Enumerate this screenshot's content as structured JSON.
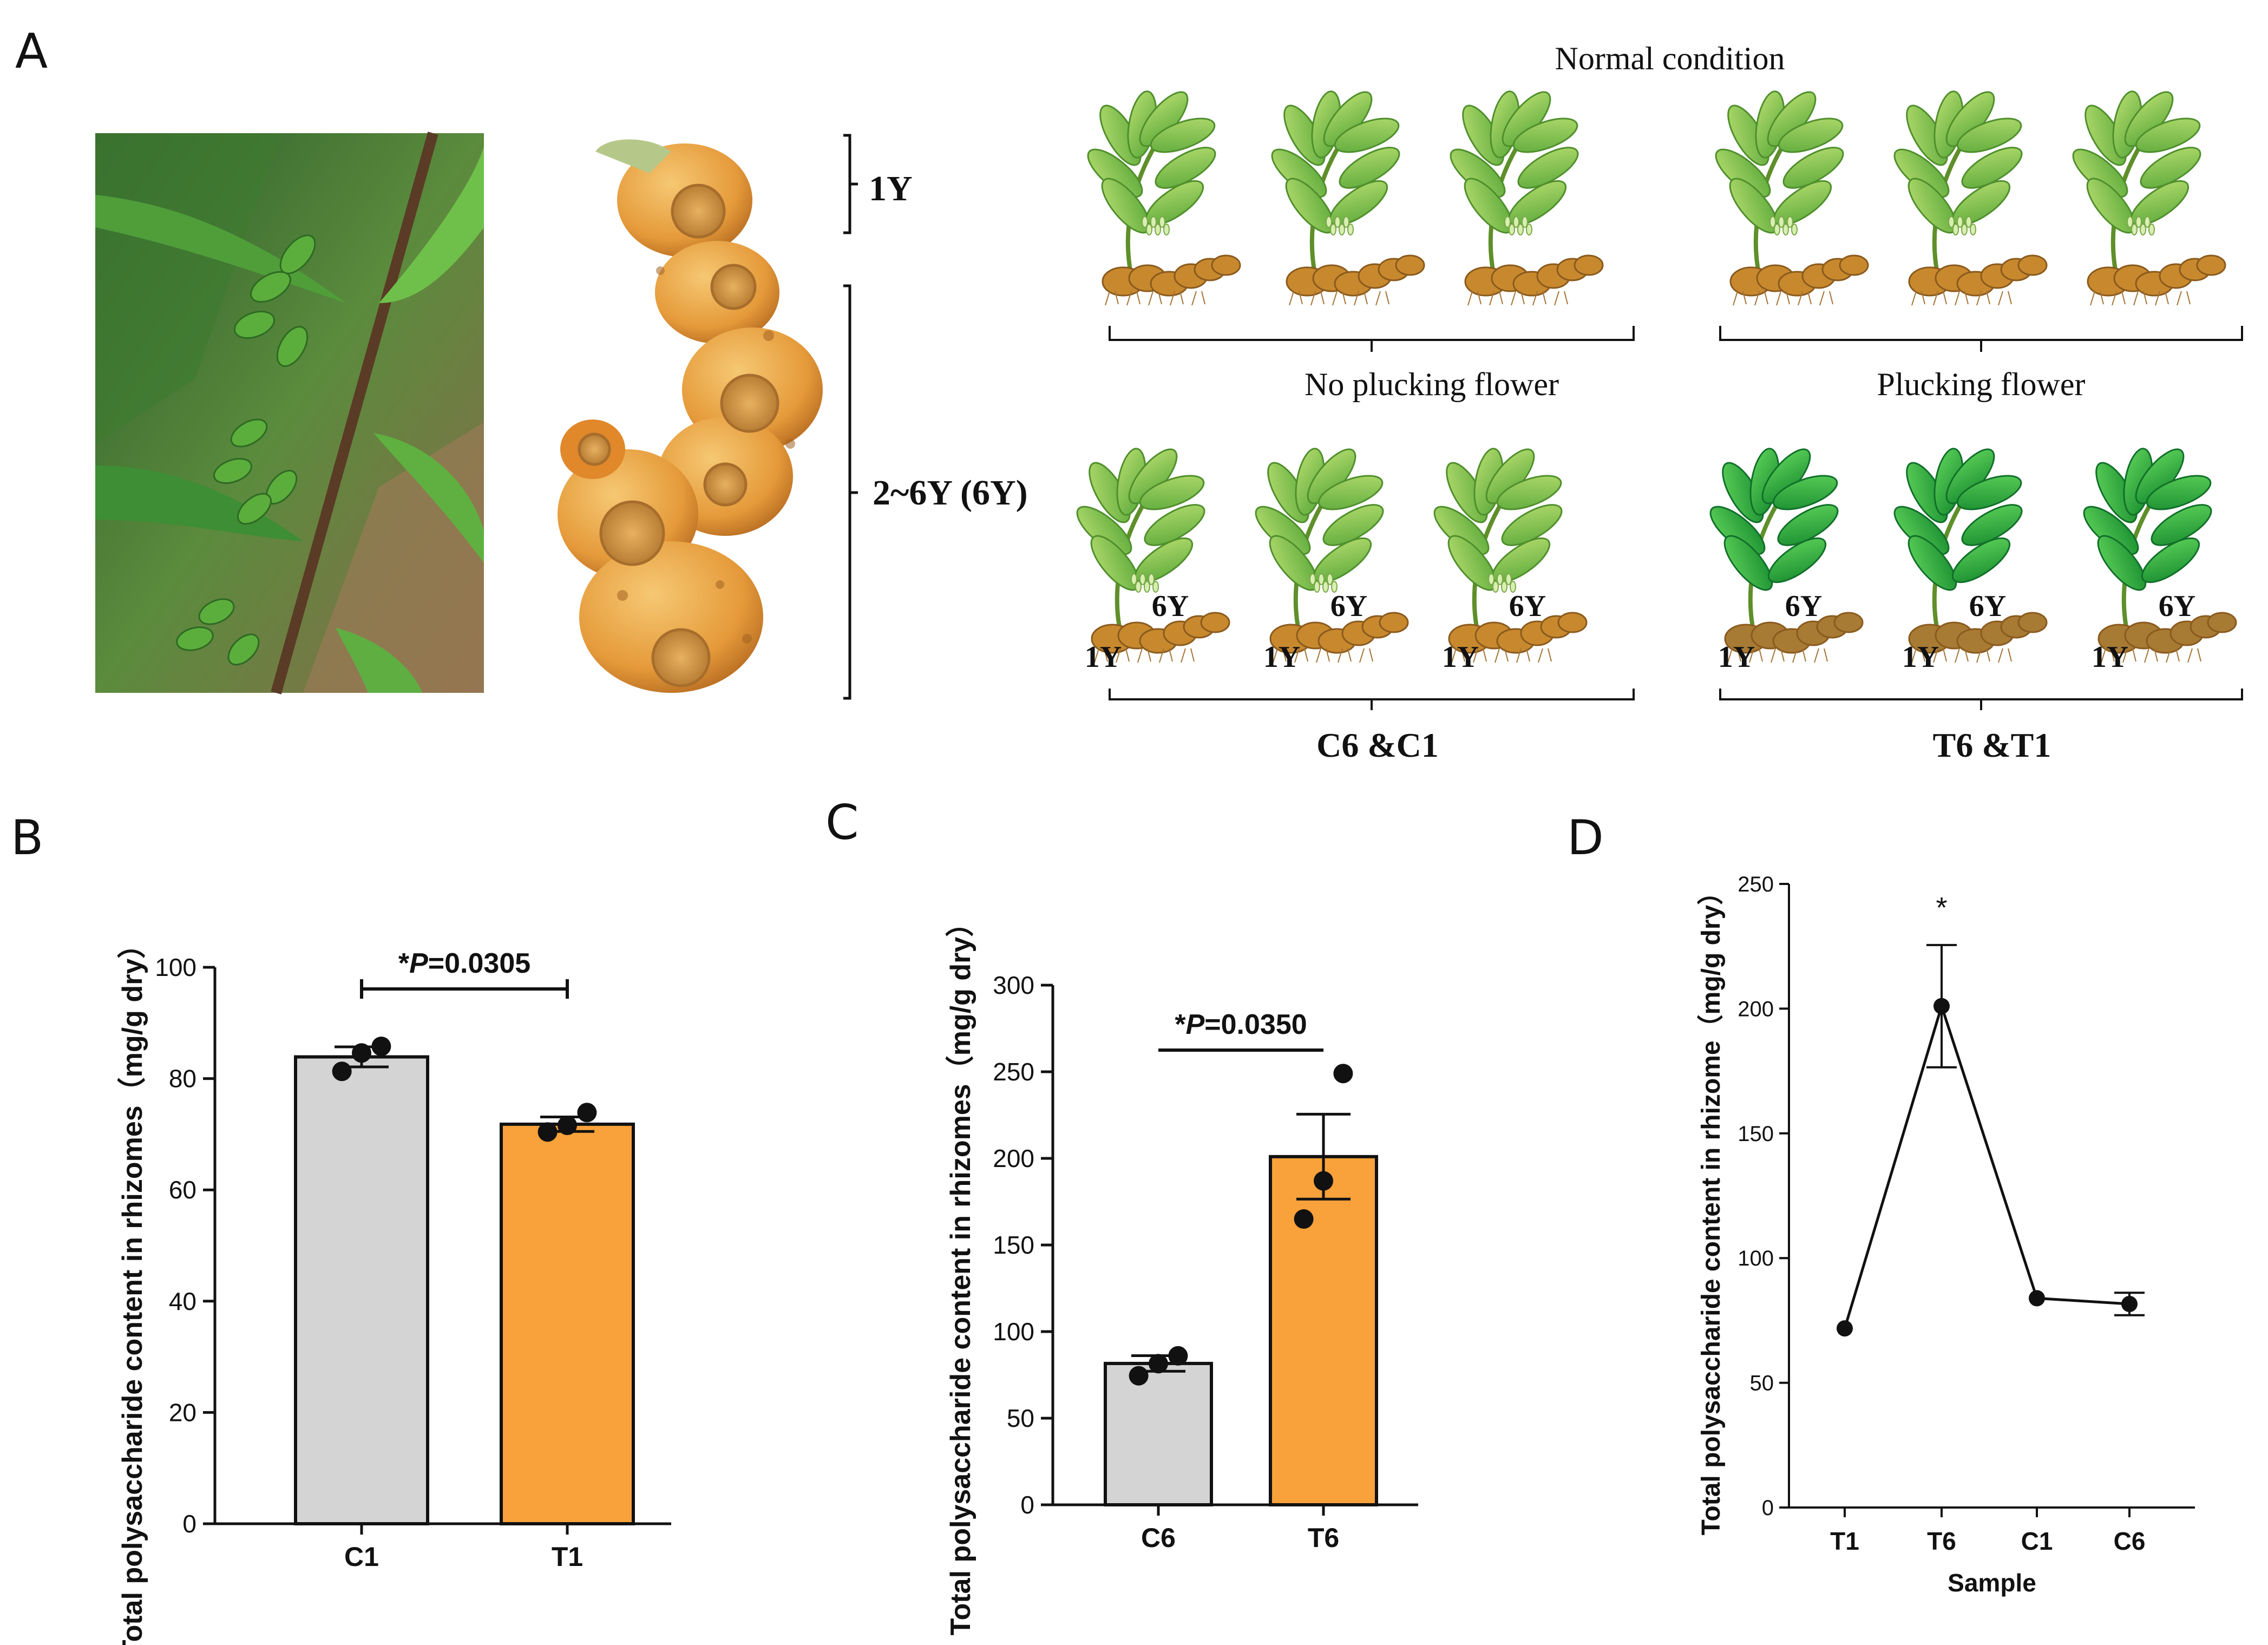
{
  "panels": {
    "a": "A",
    "b": "B",
    "c": "C",
    "d": "D"
  },
  "panel_a": {
    "rhizome_labels": {
      "young": "1Y",
      "old": "2~6Y (6Y)"
    },
    "schematic": {
      "top_title": "Normal condition",
      "left_group": "No plucking flower",
      "right_group": "Plucking flower",
      "age_old": "6Y",
      "age_young": "1Y",
      "left_bottom": "C6 &C1",
      "right_bottom": "T6 &T1"
    },
    "colors": {
      "leaf_normal": "#8cc63f",
      "leaf_plucked": "#2f9e3a",
      "rhizome": "#c8892e",
      "rhizome_plucked": "#a77b34"
    }
  },
  "chart_data": [
    {
      "id": "B",
      "type": "bar",
      "categories": [
        "C1",
        "T1"
      ],
      "values": [
        83.9,
        71.8
      ],
      "sem": [
        1.8,
        1.3
      ],
      "points": [
        [
          81.3,
          84.6,
          85.8
        ],
        [
          70.4,
          71.6,
          73.9
        ]
      ],
      "colors": [
        "#d4d4d4",
        "#f9a13a"
      ],
      "ylabel": "Total polysaccharide content in rhizomes（mg/g dry）",
      "ylim": [
        0,
        100
      ],
      "yticks": [
        0,
        20,
        40,
        60,
        80,
        100
      ],
      "significance": {
        "star": "*",
        "p_label": "P",
        "p_value": "=0.0305"
      }
    },
    {
      "id": "C",
      "type": "bar",
      "categories": [
        "C6",
        "T6"
      ],
      "values": [
        81.6,
        201.0
      ],
      "sem": [
        4.5,
        24.5
      ],
      "points": [
        [
          74.5,
          81.5,
          86.0
        ],
        [
          165.0,
          187.0,
          249.0
        ]
      ],
      "colors": [
        "#d4d4d4",
        "#f9a13a"
      ],
      "ylabel": "Total polysaccharide content in rhizomes（mg/g dry）",
      "ylim": [
        0,
        300
      ],
      "yticks": [
        0,
        50,
        100,
        150,
        200,
        250,
        300
      ],
      "significance": {
        "star": "*",
        "p_label": "P",
        "p_value": "=0.0350"
      }
    },
    {
      "id": "D",
      "type": "line",
      "categories": [
        "T1",
        "T6",
        "C1",
        "C6"
      ],
      "values": [
        71.8,
        201.0,
        83.9,
        81.6
      ],
      "sem": [
        1.3,
        24.5,
        1.8,
        4.5
      ],
      "ylabel": "Total polysaccharide content in rhizome（mg/g dry）",
      "xlabel": "Sample",
      "ylim": [
        0,
        250
      ],
      "yticks": [
        0,
        50,
        100,
        150,
        200,
        250
      ],
      "annotation": "*"
    }
  ]
}
